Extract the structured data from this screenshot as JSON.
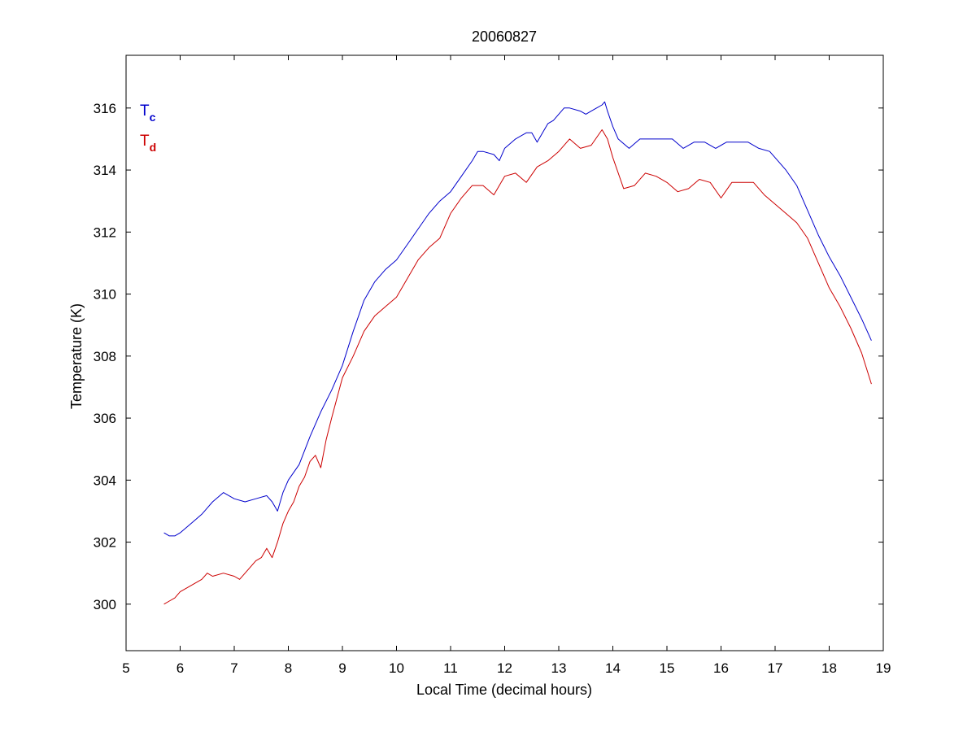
{
  "chart_data": {
    "type": "line",
    "title": "20060827",
    "xlabel": "Local Time (decimal hours)",
    "ylabel": "Temperature (K)",
    "xlim": [
      5,
      19
    ],
    "ylim": [
      298.5,
      317.7
    ],
    "xticks": [
      5,
      6,
      7,
      8,
      9,
      10,
      11,
      12,
      13,
      14,
      15,
      16,
      17,
      18,
      19
    ],
    "yticks": [
      300,
      302,
      304,
      306,
      308,
      310,
      312,
      314,
      316
    ],
    "grid": false,
    "legend_position": "top-left",
    "series": [
      {
        "name": "Tc",
        "legend_main": "T",
        "legend_sub": "c",
        "color": "#0000cc",
        "x": [
          5.7,
          5.8,
          5.9,
          6.0,
          6.2,
          6.4,
          6.6,
          6.8,
          6.9,
          7.0,
          7.2,
          7.4,
          7.6,
          7.7,
          7.8,
          7.9,
          8.0,
          8.2,
          8.4,
          8.6,
          8.8,
          9.0,
          9.2,
          9.4,
          9.6,
          9.8,
          10.0,
          10.2,
          10.4,
          10.6,
          10.8,
          11.0,
          11.2,
          11.4,
          11.5,
          11.6,
          11.8,
          11.9,
          12.0,
          12.2,
          12.4,
          12.5,
          12.6,
          12.8,
          12.9,
          13.1,
          13.2,
          13.4,
          13.5,
          13.6,
          13.7,
          13.8,
          13.85,
          13.9,
          14.0,
          14.1,
          14.3,
          14.5,
          14.7,
          14.9,
          15.1,
          15.3,
          15.5,
          15.7,
          15.9,
          16.1,
          16.3,
          16.5,
          16.7,
          16.9,
          17.0,
          17.2,
          17.4,
          17.6,
          17.8,
          18.0,
          18.2,
          18.4,
          18.6,
          18.78
        ],
        "y": [
          302.3,
          302.2,
          302.2,
          302.3,
          302.6,
          302.9,
          303.3,
          303.6,
          303.5,
          303.4,
          303.3,
          303.4,
          303.5,
          303.3,
          303.0,
          303.6,
          304.0,
          304.5,
          305.4,
          306.2,
          306.9,
          307.7,
          308.8,
          309.8,
          310.4,
          310.8,
          311.1,
          311.6,
          312.1,
          312.6,
          313.0,
          313.3,
          313.8,
          314.3,
          314.6,
          314.6,
          314.5,
          314.3,
          314.7,
          315.0,
          315.2,
          315.2,
          314.9,
          315.5,
          315.6,
          316.0,
          316.0,
          315.9,
          315.8,
          315.9,
          316.0,
          316.1,
          316.2,
          315.9,
          315.4,
          315.0,
          314.7,
          315.0,
          315.0,
          315.0,
          315.0,
          314.7,
          314.9,
          314.9,
          314.7,
          314.9,
          314.9,
          314.9,
          314.7,
          314.6,
          314.4,
          314.0,
          313.5,
          312.7,
          311.9,
          311.2,
          310.6,
          309.9,
          309.2,
          308.5
        ]
      },
      {
        "name": "Td",
        "legend_main": "T",
        "legend_sub": "d",
        "color": "#cc0000",
        "x": [
          5.7,
          5.8,
          5.9,
          6.0,
          6.2,
          6.4,
          6.5,
          6.6,
          6.8,
          7.0,
          7.1,
          7.2,
          7.4,
          7.5,
          7.6,
          7.7,
          7.8,
          7.9,
          8.0,
          8.1,
          8.2,
          8.3,
          8.4,
          8.5,
          8.6,
          8.7,
          8.8,
          9.0,
          9.2,
          9.4,
          9.6,
          9.8,
          10.0,
          10.2,
          10.4,
          10.6,
          10.8,
          11.0,
          11.2,
          11.4,
          11.6,
          11.8,
          12.0,
          12.2,
          12.4,
          12.6,
          12.8,
          13.0,
          13.2,
          13.4,
          13.6,
          13.8,
          13.9,
          14.0,
          14.2,
          14.4,
          14.6,
          14.8,
          15.0,
          15.2,
          15.4,
          15.6,
          15.8,
          16.0,
          16.2,
          16.4,
          16.6,
          16.8,
          17.0,
          17.2,
          17.4,
          17.6,
          17.8,
          18.0,
          18.2,
          18.4,
          18.6,
          18.78
        ],
        "y": [
          300.0,
          300.1,
          300.2,
          300.4,
          300.6,
          300.8,
          301.0,
          300.9,
          301.0,
          300.9,
          300.8,
          301.0,
          301.4,
          301.5,
          301.8,
          301.5,
          302.0,
          302.6,
          303.0,
          303.3,
          303.8,
          304.1,
          304.6,
          304.8,
          304.4,
          305.3,
          306.0,
          307.3,
          308.0,
          308.8,
          309.3,
          309.6,
          309.9,
          310.5,
          311.1,
          311.5,
          311.8,
          312.6,
          313.1,
          313.5,
          313.5,
          313.2,
          313.8,
          313.9,
          313.6,
          314.1,
          314.3,
          314.6,
          315.0,
          314.7,
          314.8,
          315.3,
          315.0,
          314.4,
          313.4,
          313.5,
          313.9,
          313.8,
          313.6,
          313.3,
          313.4,
          313.7,
          313.6,
          313.1,
          313.6,
          313.6,
          313.6,
          313.2,
          312.9,
          312.6,
          312.3,
          311.8,
          311.0,
          310.2,
          309.6,
          308.9,
          308.1,
          307.1
        ]
      }
    ]
  }
}
